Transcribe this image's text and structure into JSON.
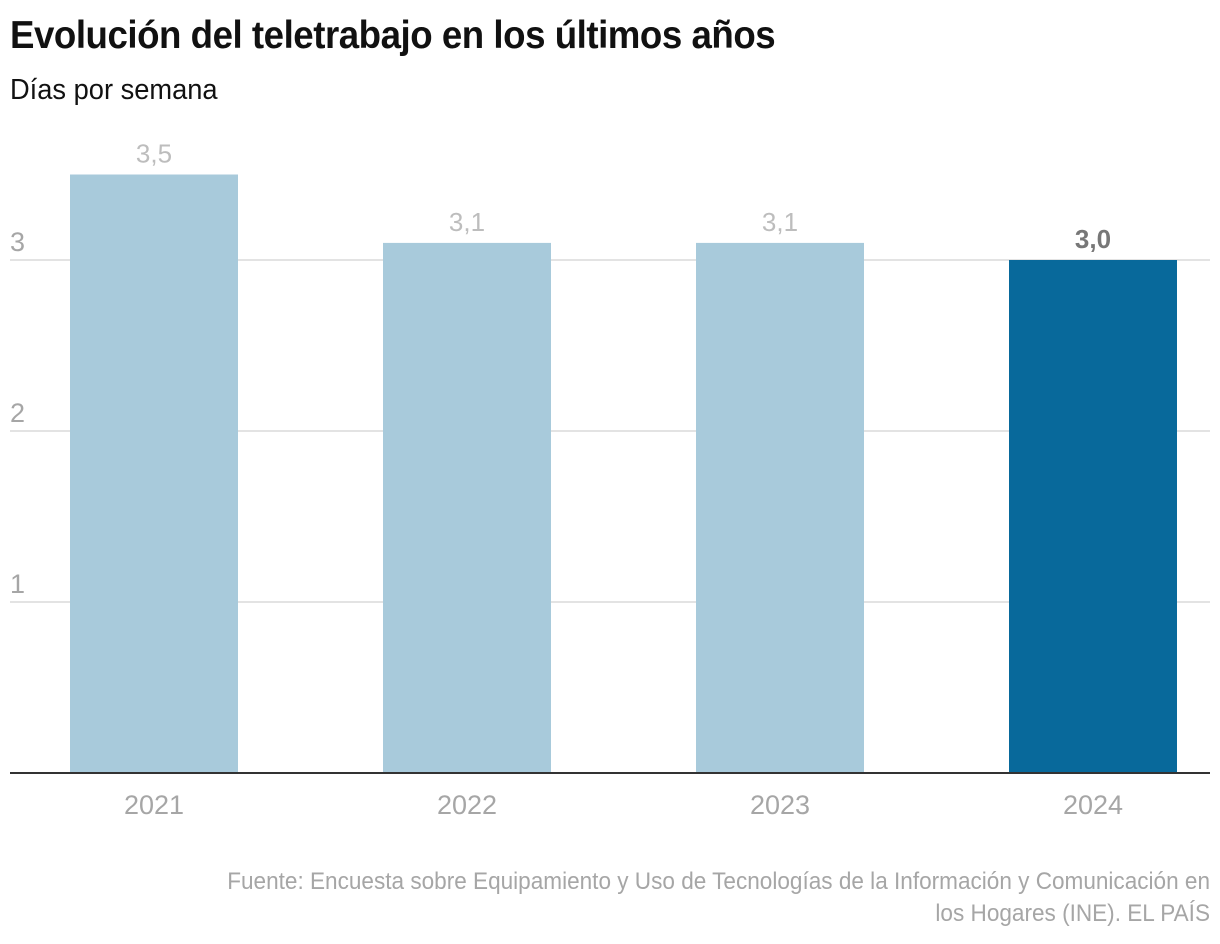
{
  "header": {
    "title": "Evolución del teletrabajo en los últimos años",
    "subtitle": "Días por semana"
  },
  "footer": {
    "source_line1": "Fuente: Encuesta sobre Equipamiento y Uso de Tecnologías de la Información y Comunicación en",
    "source_line2": "los Hogares (INE). EL PAÍS"
  },
  "colors": {
    "bar_default": "#a8cadb",
    "bar_highlight": "#08699b",
    "label_default": "#bdbdbd",
    "label_highlight": "#777777",
    "gridline": "#e3e3e3",
    "axis": "#333333",
    "tick_text": "#a6a6a6"
  },
  "chart_data": {
    "type": "bar",
    "title": "Evolución del teletrabajo en los últimos años",
    "subtitle": "Días por semana",
    "xlabel": "",
    "ylabel": "Días por semana",
    "categories": [
      "2021",
      "2022",
      "2023",
      "2024"
    ],
    "values": [
      3.5,
      3.1,
      3.1,
      3.0
    ],
    "value_labels": [
      "3,5",
      "3,1",
      "3,1",
      "3,0"
    ],
    "highlight_index": 3,
    "ylim": [
      0,
      3.5
    ],
    "yticks": [
      1,
      2,
      3
    ],
    "ytick_labels": [
      "1",
      "2",
      "3"
    ],
    "grid": true,
    "legend": "none"
  }
}
